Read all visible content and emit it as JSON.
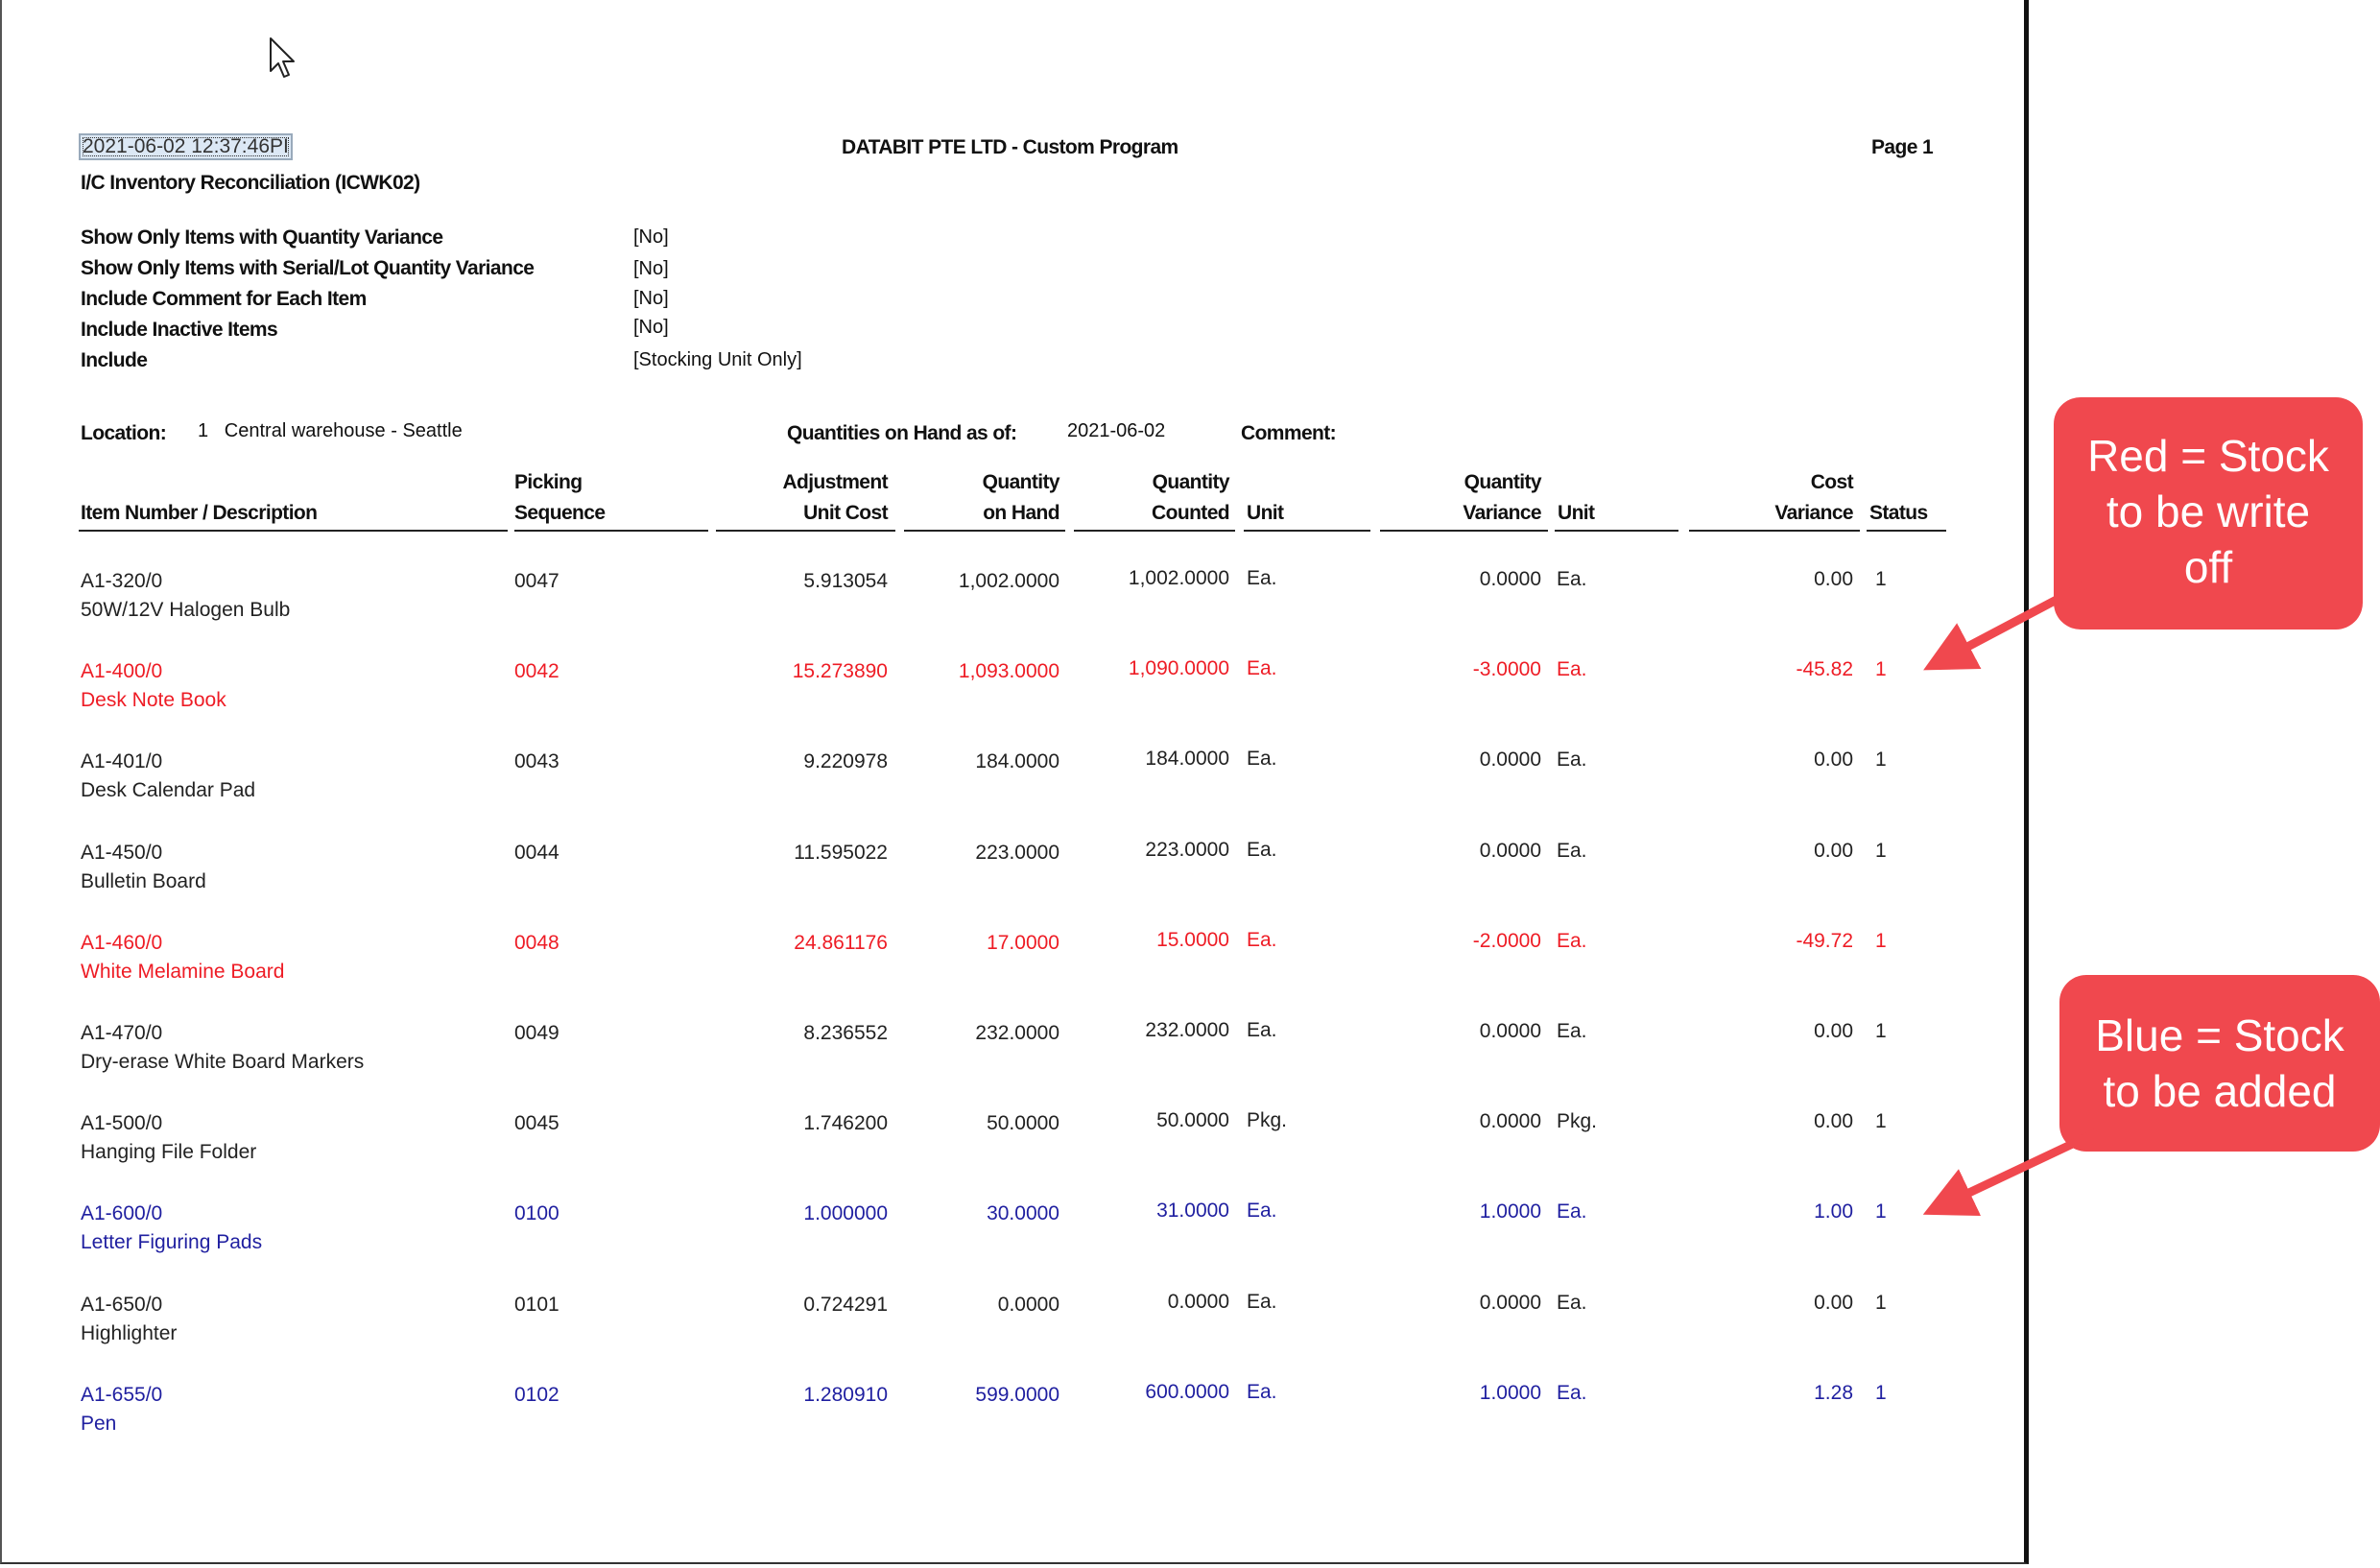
{
  "report": {
    "timestamp": "2021-06-02 12:37:46PI",
    "company": "DATABIT PTE LTD - Custom Program",
    "page": "Page 1",
    "report_title": "I/C Inventory Reconciliation (ICWK02)"
  },
  "options": [
    {
      "label": "Show Only Items with Quantity Variance",
      "value": "[No]"
    },
    {
      "label": "Show Only Items with Serial/Lot Quantity Variance",
      "value": "[No]"
    },
    {
      "label": "Include Comment for Each Item",
      "value": "[No]"
    },
    {
      "label": "Include Inactive Items",
      "value": "[No]"
    },
    {
      "label": "Include",
      "value": "[Stocking Unit Only]"
    }
  ],
  "location": {
    "label": "Location:",
    "value": "1   Central warehouse - Seattle",
    "qoh_label": "Quantities on Hand as of:",
    "qoh_date": "2021-06-02",
    "comment_label": "Comment:"
  },
  "headers": {
    "item": "Item Number / Description",
    "picking_1": "Picking",
    "picking_2": "Sequence",
    "adj_1": "Adjustment",
    "adj_2": "Unit Cost",
    "qoh_1": "Quantity",
    "qoh_2": "on Hand",
    "counted_1": "Quantity",
    "counted_2": "Counted",
    "unit": "Unit",
    "var_1": "Quantity",
    "var_2": "Variance",
    "unit2": "Unit",
    "cost_1": "Cost",
    "cost_2": "Variance",
    "status": "Status"
  },
  "rows": [
    {
      "item": "A1-320/0",
      "desc": "50W/12V Halogen Bulb",
      "seq": "0047",
      "cost": "5.913054",
      "qoh": "1,002.0000",
      "counted": "1,002.0000",
      "unit": "Ea.",
      "var": "0.0000",
      "unit2": "Ea.",
      "cost_var": "0.00",
      "status": "1",
      "color": "black"
    },
    {
      "item": "A1-400/0",
      "desc": "Desk Note Book",
      "seq": "0042",
      "cost": "15.273890",
      "qoh": "1,093.0000",
      "counted": "1,090.0000",
      "unit": "Ea.",
      "var": "-3.0000",
      "unit2": "Ea.",
      "cost_var": "-45.82",
      "status": "1",
      "color": "red"
    },
    {
      "item": "A1-401/0",
      "desc": "Desk Calendar Pad",
      "seq": "0043",
      "cost": "9.220978",
      "qoh": "184.0000",
      "counted": "184.0000",
      "unit": "Ea.",
      "var": "0.0000",
      "unit2": "Ea.",
      "cost_var": "0.00",
      "status": "1",
      "color": "black"
    },
    {
      "item": "A1-450/0",
      "desc": "Bulletin Board",
      "seq": "0044",
      "cost": "11.595022",
      "qoh": "223.0000",
      "counted": "223.0000",
      "unit": "Ea.",
      "var": "0.0000",
      "unit2": "Ea.",
      "cost_var": "0.00",
      "status": "1",
      "color": "black"
    },
    {
      "item": "A1-460/0",
      "desc": "White Melamine Board",
      "seq": "0048",
      "cost": "24.861176",
      "qoh": "17.0000",
      "counted": "15.0000",
      "unit": "Ea.",
      "var": "-2.0000",
      "unit2": "Ea.",
      "cost_var": "-49.72",
      "status": "1",
      "color": "red"
    },
    {
      "item": "A1-470/0",
      "desc": "Dry-erase White Board Markers",
      "seq": "0049",
      "cost": "8.236552",
      "qoh": "232.0000",
      "counted": "232.0000",
      "unit": "Ea.",
      "var": "0.0000",
      "unit2": "Ea.",
      "cost_var": "0.00",
      "status": "1",
      "color": "black"
    },
    {
      "item": "A1-500/0",
      "desc": "Hanging File Folder",
      "seq": "0045",
      "cost": "1.746200",
      "qoh": "50.0000",
      "counted": "50.0000",
      "unit": "Pkg.",
      "var": "0.0000",
      "unit2": "Pkg.",
      "cost_var": "0.00",
      "status": "1",
      "color": "black"
    },
    {
      "item": "A1-600/0",
      "desc": "Letter Figuring Pads",
      "seq": "0100",
      "cost": "1.000000",
      "qoh": "30.0000",
      "counted": "31.0000",
      "unit": "Ea.",
      "var": "1.0000",
      "unit2": "Ea.",
      "cost_var": "1.00",
      "status": "1",
      "color": "blue"
    },
    {
      "item": "A1-650/0",
      "desc": "Highlighter",
      "seq": "0101",
      "cost": "0.724291",
      "qoh": "0.0000",
      "counted": "0.0000",
      "unit": "Ea.",
      "var": "0.0000",
      "unit2": "Ea.",
      "cost_var": "0.00",
      "status": "1",
      "color": "black"
    },
    {
      "item": "A1-655/0",
      "desc": "Pen",
      "seq": "0102",
      "cost": "1.280910",
      "qoh": "599.0000",
      "counted": "600.0000",
      "unit": "Ea.",
      "var": "1.0000",
      "unit2": "Ea.",
      "cost_var": "1.28",
      "status": "1",
      "color": "blue"
    }
  ],
  "callouts": {
    "red": [
      "Red = Stock",
      "to be write",
      "off"
    ],
    "blue": [
      "Blue = Stock",
      "to be added"
    ],
    "colors": {
      "red_text": "#ee1c25",
      "blue_text": "#1f1fa0",
      "callout_bg": "#f0484e"
    }
  }
}
